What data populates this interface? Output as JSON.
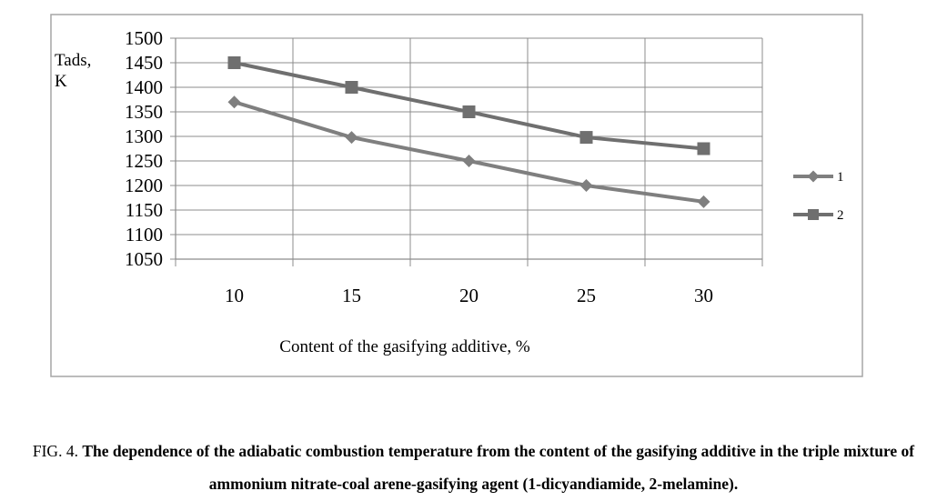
{
  "chart_data": {
    "type": "line",
    "x": [
      10,
      15,
      20,
      25,
      30
    ],
    "xlabel": "Content of the gasifying additive, %",
    "ylabel": [
      "Tads,",
      "K"
    ],
    "ylim": [
      1050,
      1500
    ],
    "yticks": [
      1050,
      1100,
      1150,
      1200,
      1250,
      1300,
      1350,
      1400,
      1450,
      1500
    ],
    "grid": true,
    "legend_position": "right",
    "series": [
      {
        "name": "1",
        "marker": "diamond",
        "color": "#7f7f7f",
        "values": [
          1370,
          1298,
          1250,
          1200,
          1167
        ]
      },
      {
        "name": "2",
        "marker": "square",
        "color": "#6f6f6f",
        "values": [
          1450,
          1400,
          1350,
          1298,
          1275
        ]
      }
    ]
  },
  "caption": {
    "prefix": "FIG. 4.",
    "text": "The dependence of the adiabatic combustion temperature from the content of the gasifying additive in the triple mixture of ammonium nitrate-coal arene-gasifying agent (1-dicyandiamide, 2-melamine)."
  }
}
